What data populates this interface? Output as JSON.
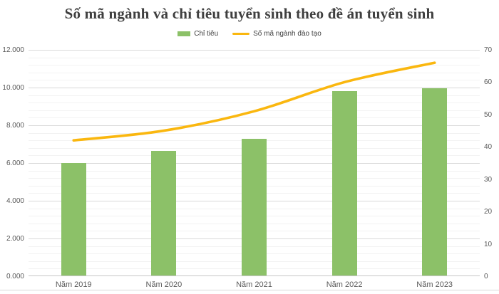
{
  "title": "Số mã ngành và chỉ tiêu tuyển sinh theo đề án tuyển sinh",
  "legend": [
    {
      "label": "Chỉ tiêu",
      "swatch": "bar-swatch",
      "color": "#8CC168"
    },
    {
      "label": "Số mã ngành đào tạo",
      "swatch": "line-swatch",
      "color": "#FAB70F"
    }
  ],
  "colors": {
    "bar": "#8CC168",
    "line": "#FAB70F",
    "title_text": "#3f3f3f",
    "axis_text": "#595959",
    "gridline_major": "#d9d9d9",
    "gridline_minor": "#f2f2f2",
    "axis_line": "#c6c6c6"
  },
  "chart_data": {
    "type": "bar",
    "subtype": "combo-bar-line",
    "title": "Số mã ngành và chỉ tiêu tuyển sinh theo đề án tuyển sinh",
    "categories": [
      "Năm 2019",
      "Năm 2020",
      "Năm 2021",
      "Năm 2022",
      "Năm 2023"
    ],
    "series": [
      {
        "name": "Chỉ tiêu",
        "type": "bar",
        "axis": "left",
        "color": "#8CC168",
        "values": [
          5950,
          6600,
          7250,
          9770,
          9920
        ]
      },
      {
        "name": "Số mã ngành đào tạo",
        "type": "line",
        "axis": "right",
        "color": "#FAB70F",
        "values": [
          42,
          45,
          51,
          60,
          66
        ]
      }
    ],
    "left_axis": {
      "min": 0,
      "max": 12000,
      "major_step": 2000,
      "minor_step": 400,
      "tick_labels": [
        "0.000",
        "2.000",
        "4.000",
        "6.000",
        "8.000",
        "10.000",
        "12.000"
      ]
    },
    "right_axis": {
      "min": 0,
      "max": 70,
      "major_step": 10,
      "tick_labels": [
        "0",
        "10",
        "20",
        "30",
        "40",
        "50",
        "60",
        "70"
      ]
    },
    "grid": true,
    "legend_position": "top"
  }
}
